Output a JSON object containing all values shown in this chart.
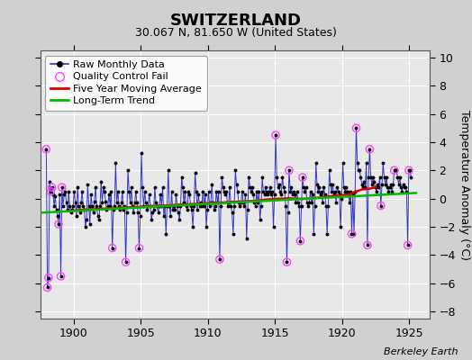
{
  "title": "SWITZERLAND",
  "subtitle": "30.067 N, 81.650 W (United States)",
  "ylabel": "Temperature Anomaly (°C)",
  "watermark": "Berkeley Earth",
  "xlim": [
    1897.5,
    1926.5
  ],
  "ylim": [
    -8.5,
    10.5
  ],
  "yticks": [
    -8,
    -6,
    -4,
    -2,
    0,
    2,
    4,
    6,
    8,
    10
  ],
  "xticks": [
    1900,
    1905,
    1910,
    1915,
    1920,
    1925
  ],
  "fig_bg_color": "#d0d0d0",
  "plot_bg_color": "#e8e8e8",
  "title_bg_color": "#e8e8e8",
  "raw_color": "#3333cc",
  "dot_color": "#000000",
  "qc_color": "#ff44ff",
  "mavg_color": "#dd0000",
  "trend_color": "#00bb00",
  "raw_monthly": [
    [
      1897.958,
      3.5
    ],
    [
      1898.042,
      -6.3
    ],
    [
      1898.125,
      -5.6
    ],
    [
      1898.208,
      1.2
    ],
    [
      1898.292,
      0.5
    ],
    [
      1898.375,
      0.8
    ],
    [
      1898.458,
      0.3
    ],
    [
      1898.542,
      -0.5
    ],
    [
      1898.625,
      0.2
    ],
    [
      1898.708,
      -0.8
    ],
    [
      1898.792,
      -1.2
    ],
    [
      1898.875,
      -1.8
    ],
    [
      1898.958,
      0.3
    ],
    [
      1899.042,
      -5.5
    ],
    [
      1899.125,
      0.8
    ],
    [
      1899.208,
      -0.5
    ],
    [
      1899.292,
      0.3
    ],
    [
      1899.375,
      0.5
    ],
    [
      1899.458,
      -0.3
    ],
    [
      1899.542,
      -0.8
    ],
    [
      1899.625,
      0.5
    ],
    [
      1899.708,
      -0.5
    ],
    [
      1899.792,
      -1.0
    ],
    [
      1899.875,
      -0.8
    ],
    [
      1899.958,
      -0.5
    ],
    [
      1900.042,
      0.5
    ],
    [
      1900.125,
      -0.3
    ],
    [
      1900.208,
      -1.2
    ],
    [
      1900.292,
      0.8
    ],
    [
      1900.375,
      -0.5
    ],
    [
      1900.458,
      -1.0
    ],
    [
      1900.542,
      -0.3
    ],
    [
      1900.625,
      0.5
    ],
    [
      1900.708,
      -0.5
    ],
    [
      1900.792,
      -0.8
    ],
    [
      1900.875,
      -2.0
    ],
    [
      1900.958,
      -1.5
    ],
    [
      1901.042,
      1.0
    ],
    [
      1901.125,
      -0.5
    ],
    [
      1901.208,
      -1.8
    ],
    [
      1901.292,
      0.3
    ],
    [
      1901.375,
      -0.5
    ],
    [
      1901.458,
      -1.0
    ],
    [
      1901.542,
      -0.2
    ],
    [
      1901.625,
      0.8
    ],
    [
      1901.708,
      -0.5
    ],
    [
      1901.792,
      -1.2
    ],
    [
      1901.875,
      -1.5
    ],
    [
      1901.958,
      -0.5
    ],
    [
      1902.042,
      1.2
    ],
    [
      1902.125,
      -0.3
    ],
    [
      1902.208,
      0.8
    ],
    [
      1902.292,
      0.5
    ],
    [
      1902.375,
      -0.2
    ],
    [
      1902.458,
      -0.8
    ],
    [
      1902.542,
      -0.5
    ],
    [
      1902.625,
      0.3
    ],
    [
      1902.708,
      -0.5
    ],
    [
      1902.792,
      0.5
    ],
    [
      1902.875,
      -3.5
    ],
    [
      1902.958,
      -0.8
    ],
    [
      1903.042,
      -0.5
    ],
    [
      1903.125,
      2.5
    ],
    [
      1903.208,
      -0.3
    ],
    [
      1903.292,
      0.5
    ],
    [
      1903.375,
      -0.5
    ],
    [
      1903.458,
      -0.8
    ],
    [
      1903.542,
      -0.3
    ],
    [
      1903.625,
      0.5
    ],
    [
      1903.708,
      -0.8
    ],
    [
      1903.792,
      -0.5
    ],
    [
      1903.875,
      -4.5
    ],
    [
      1903.958,
      -1.0
    ],
    [
      1904.042,
      2.0
    ],
    [
      1904.125,
      0.5
    ],
    [
      1904.208,
      -0.3
    ],
    [
      1904.292,
      0.8
    ],
    [
      1904.375,
      -0.5
    ],
    [
      1904.458,
      -1.0
    ],
    [
      1904.542,
      -0.3
    ],
    [
      1904.625,
      0.5
    ],
    [
      1904.708,
      -0.3
    ],
    [
      1904.792,
      -1.0
    ],
    [
      1904.875,
      -3.5
    ],
    [
      1904.958,
      -1.2
    ],
    [
      1905.042,
      3.2
    ],
    [
      1905.125,
      0.8
    ],
    [
      1905.208,
      -0.5
    ],
    [
      1905.292,
      0.5
    ],
    [
      1905.375,
      -0.3
    ],
    [
      1905.458,
      -0.8
    ],
    [
      1905.542,
      -0.5
    ],
    [
      1905.625,
      0.3
    ],
    [
      1905.708,
      -0.5
    ],
    [
      1905.792,
      -1.5
    ],
    [
      1905.875,
      -1.0
    ],
    [
      1905.958,
      -0.8
    ],
    [
      1906.042,
      0.8
    ],
    [
      1906.125,
      -0.3
    ],
    [
      1906.208,
      -0.5
    ],
    [
      1906.292,
      -1.0
    ],
    [
      1906.375,
      -0.5
    ],
    [
      1906.458,
      0.3
    ],
    [
      1906.542,
      -0.5
    ],
    [
      1906.625,
      0.8
    ],
    [
      1906.708,
      -1.2
    ],
    [
      1906.792,
      -0.5
    ],
    [
      1906.875,
      -2.5
    ],
    [
      1906.958,
      -0.5
    ],
    [
      1907.042,
      2.0
    ],
    [
      1907.125,
      -0.5
    ],
    [
      1907.208,
      -1.2
    ],
    [
      1907.292,
      0.5
    ],
    [
      1907.375,
      -0.8
    ],
    [
      1907.458,
      -0.5
    ],
    [
      1907.542,
      -0.8
    ],
    [
      1907.625,
      0.3
    ],
    [
      1907.708,
      -0.5
    ],
    [
      1907.792,
      -1.0
    ],
    [
      1907.875,
      -1.5
    ],
    [
      1907.958,
      -0.5
    ],
    [
      1908.042,
      1.5
    ],
    [
      1908.125,
      0.8
    ],
    [
      1908.208,
      -0.3
    ],
    [
      1908.292,
      0.5
    ],
    [
      1908.375,
      -0.5
    ],
    [
      1908.458,
      -0.8
    ],
    [
      1908.542,
      0.5
    ],
    [
      1908.625,
      0.3
    ],
    [
      1908.708,
      -0.5
    ],
    [
      1908.792,
      -0.8
    ],
    [
      1908.875,
      -2.0
    ],
    [
      1908.958,
      -0.5
    ],
    [
      1909.042,
      1.8
    ],
    [
      1909.125,
      0.5
    ],
    [
      1909.208,
      -0.8
    ],
    [
      1909.292,
      0.3
    ],
    [
      1909.375,
      -0.5
    ],
    [
      1909.458,
      -0.3
    ],
    [
      1909.542,
      -0.5
    ],
    [
      1909.625,
      0.5
    ],
    [
      1909.708,
      -0.5
    ],
    [
      1909.792,
      0.3
    ],
    [
      1909.875,
      -2.0
    ],
    [
      1909.958,
      -0.8
    ],
    [
      1910.042,
      0.5
    ],
    [
      1910.125,
      -0.5
    ],
    [
      1910.208,
      -0.3
    ],
    [
      1910.292,
      1.0
    ],
    [
      1910.375,
      -0.3
    ],
    [
      1910.458,
      -0.8
    ],
    [
      1910.542,
      -0.5
    ],
    [
      1910.625,
      0.5
    ],
    [
      1910.708,
      -0.3
    ],
    [
      1910.792,
      0.5
    ],
    [
      1910.875,
      -4.3
    ],
    [
      1910.958,
      -0.5
    ],
    [
      1911.042,
      1.5
    ],
    [
      1911.125,
      0.8
    ],
    [
      1911.208,
      0.5
    ],
    [
      1911.292,
      0.3
    ],
    [
      1911.375,
      0.5
    ],
    [
      1911.458,
      -0.5
    ],
    [
      1911.542,
      -0.3
    ],
    [
      1911.625,
      0.8
    ],
    [
      1911.708,
      -0.5
    ],
    [
      1911.792,
      -1.0
    ],
    [
      1911.875,
      -2.5
    ],
    [
      1911.958,
      -0.5
    ],
    [
      1912.042,
      2.0
    ],
    [
      1912.125,
      1.0
    ],
    [
      1912.208,
      0.5
    ],
    [
      1912.292,
      -0.3
    ],
    [
      1912.375,
      -0.5
    ],
    [
      1912.458,
      -0.3
    ],
    [
      1912.542,
      0.5
    ],
    [
      1912.625,
      -0.3
    ],
    [
      1912.708,
      -0.5
    ],
    [
      1912.792,
      0.3
    ],
    [
      1912.875,
      -2.8
    ],
    [
      1912.958,
      -0.8
    ],
    [
      1913.042,
      1.5
    ],
    [
      1913.125,
      0.8
    ],
    [
      1913.208,
      0.5
    ],
    [
      1913.292,
      0.8
    ],
    [
      1913.375,
      0.3
    ],
    [
      1913.458,
      -0.3
    ],
    [
      1913.542,
      -0.5
    ],
    [
      1913.625,
      0.5
    ],
    [
      1913.708,
      -0.3
    ],
    [
      1913.792,
      0.5
    ],
    [
      1913.875,
      -1.5
    ],
    [
      1913.958,
      -0.5
    ],
    [
      1914.042,
      1.5
    ],
    [
      1914.125,
      0.5
    ],
    [
      1914.208,
      0.3
    ],
    [
      1914.292,
      0.8
    ],
    [
      1914.375,
      0.5
    ],
    [
      1914.458,
      0.3
    ],
    [
      1914.542,
      0.5
    ],
    [
      1914.625,
      0.8
    ],
    [
      1914.708,
      0.3
    ],
    [
      1914.792,
      0.5
    ],
    [
      1914.875,
      -2.0
    ],
    [
      1914.958,
      0.3
    ],
    [
      1915.042,
      4.5
    ],
    [
      1915.125,
      1.5
    ],
    [
      1915.208,
      0.8
    ],
    [
      1915.292,
      1.0
    ],
    [
      1915.375,
      0.5
    ],
    [
      1915.458,
      0.3
    ],
    [
      1915.542,
      1.5
    ],
    [
      1915.625,
      0.8
    ],
    [
      1915.708,
      0.5
    ],
    [
      1915.792,
      -0.5
    ],
    [
      1915.875,
      -4.5
    ],
    [
      1915.958,
      -1.0
    ],
    [
      1916.042,
      2.0
    ],
    [
      1916.125,
      0.5
    ],
    [
      1916.208,
      0.8
    ],
    [
      1916.292,
      0.3
    ],
    [
      1916.375,
      0.5
    ],
    [
      1916.458,
      0.3
    ],
    [
      1916.542,
      -0.3
    ],
    [
      1916.625,
      0.5
    ],
    [
      1916.708,
      -0.3
    ],
    [
      1916.792,
      -0.5
    ],
    [
      1916.875,
      -3.0
    ],
    [
      1916.958,
      -0.5
    ],
    [
      1917.042,
      1.5
    ],
    [
      1917.125,
      0.8
    ],
    [
      1917.208,
      0.5
    ],
    [
      1917.292,
      0.8
    ],
    [
      1917.375,
      -0.3
    ],
    [
      1917.458,
      -0.5
    ],
    [
      1917.542,
      -0.3
    ],
    [
      1917.625,
      0.5
    ],
    [
      1917.708,
      -0.3
    ],
    [
      1917.792,
      0.3
    ],
    [
      1917.875,
      -2.5
    ],
    [
      1917.958,
      -0.5
    ],
    [
      1918.042,
      2.5
    ],
    [
      1918.125,
      1.0
    ],
    [
      1918.208,
      0.5
    ],
    [
      1918.292,
      0.8
    ],
    [
      1918.375,
      0.3
    ],
    [
      1918.458,
      0.5
    ],
    [
      1918.542,
      -0.3
    ],
    [
      1918.625,
      0.8
    ],
    [
      1918.708,
      0.3
    ],
    [
      1918.792,
      -0.5
    ],
    [
      1918.875,
      -2.5
    ],
    [
      1918.958,
      -0.5
    ],
    [
      1919.042,
      2.0
    ],
    [
      1919.125,
      1.0
    ],
    [
      1919.208,
      0.5
    ],
    [
      1919.292,
      1.0
    ],
    [
      1919.375,
      0.3
    ],
    [
      1919.458,
      0.5
    ],
    [
      1919.542,
      -0.3
    ],
    [
      1919.625,
      0.8
    ],
    [
      1919.708,
      0.5
    ],
    [
      1919.792,
      0.3
    ],
    [
      1919.875,
      -2.0
    ],
    [
      1919.958,
      0.0
    ],
    [
      1920.042,
      2.5
    ],
    [
      1920.125,
      0.8
    ],
    [
      1920.208,
      0.5
    ],
    [
      1920.292,
      0.8
    ],
    [
      1920.375,
      0.5
    ],
    [
      1920.458,
      0.3
    ],
    [
      1920.542,
      -0.3
    ],
    [
      1920.625,
      0.5
    ],
    [
      1920.708,
      -2.5
    ],
    [
      1920.792,
      0.3
    ],
    [
      1920.875,
      -2.5
    ],
    [
      1920.958,
      0.5
    ],
    [
      1921.042,
      5.0
    ],
    [
      1921.125,
      2.5
    ],
    [
      1921.208,
      2.0
    ],
    [
      1921.292,
      2.0
    ],
    [
      1921.375,
      1.5
    ],
    [
      1921.458,
      1.0
    ],
    [
      1921.542,
      0.8
    ],
    [
      1921.625,
      1.2
    ],
    [
      1921.708,
      0.8
    ],
    [
      1921.792,
      2.5
    ],
    [
      1921.875,
      -3.3
    ],
    [
      1921.958,
      1.5
    ],
    [
      1922.042,
      3.5
    ],
    [
      1922.125,
      1.5
    ],
    [
      1922.208,
      1.0
    ],
    [
      1922.292,
      1.5
    ],
    [
      1922.375,
      1.2
    ],
    [
      1922.458,
      0.8
    ],
    [
      1922.542,
      0.5
    ],
    [
      1922.625,
      1.0
    ],
    [
      1922.708,
      0.8
    ],
    [
      1922.792,
      1.5
    ],
    [
      1922.875,
      -0.5
    ],
    [
      1922.958,
      1.0
    ],
    [
      1923.042,
      2.5
    ],
    [
      1923.125,
      1.5
    ],
    [
      1923.208,
      1.0
    ],
    [
      1923.292,
      1.5
    ],
    [
      1923.375,
      0.8
    ],
    [
      1923.458,
      0.5
    ],
    [
      1923.542,
      0.8
    ],
    [
      1923.625,
      1.0
    ],
    [
      1923.708,
      0.5
    ],
    [
      1923.792,
      1.0
    ],
    [
      1923.875,
      2.0
    ],
    [
      1923.958,
      2.0
    ],
    [
      1924.042,
      2.0
    ],
    [
      1924.125,
      1.5
    ],
    [
      1924.208,
      1.0
    ],
    [
      1924.292,
      1.5
    ],
    [
      1924.375,
      0.8
    ],
    [
      1924.458,
      0.5
    ],
    [
      1924.542,
      1.0
    ],
    [
      1924.625,
      0.8
    ],
    [
      1924.708,
      0.8
    ],
    [
      1924.792,
      0.5
    ],
    [
      1924.875,
      -3.3
    ],
    [
      1924.958,
      2.0
    ],
    [
      1925.042,
      2.0
    ],
    [
      1925.125,
      1.5
    ]
  ],
  "qc_fail_points": [
    [
      1897.958,
      3.5
    ],
    [
      1898.042,
      -6.3
    ],
    [
      1898.125,
      -5.6
    ],
    [
      1898.875,
      -1.8
    ],
    [
      1899.042,
      -5.5
    ],
    [
      1898.292,
      0.5
    ],
    [
      1898.375,
      0.8
    ],
    [
      1902.875,
      -3.5
    ],
    [
      1903.875,
      -4.5
    ],
    [
      1904.875,
      -3.5
    ],
    [
      1910.875,
      -4.3
    ],
    [
      1915.875,
      -4.5
    ],
    [
      1916.875,
      -3.0
    ],
    [
      1921.875,
      -3.3
    ],
    [
      1922.042,
      3.5
    ],
    [
      1922.875,
      -0.5
    ],
    [
      1923.875,
      2.0
    ],
    [
      1924.875,
      -3.3
    ],
    [
      1924.958,
      2.0
    ],
    [
      1920.708,
      -2.5
    ],
    [
      1915.042,
      4.5
    ],
    [
      1921.042,
      5.0
    ],
    [
      1916.042,
      2.0
    ],
    [
      1917.042,
      1.5
    ],
    [
      1899.125,
      0.8
    ]
  ],
  "five_year_mavg": [
    [
      1899.5,
      -0.9
    ],
    [
      1900.0,
      -0.85
    ],
    [
      1900.5,
      -0.8
    ],
    [
      1901.0,
      -0.78
    ],
    [
      1901.5,
      -0.75
    ],
    [
      1902.0,
      -0.72
    ],
    [
      1902.5,
      -0.7
    ],
    [
      1903.0,
      -0.68
    ],
    [
      1903.5,
      -0.65
    ],
    [
      1904.0,
      -0.62
    ],
    [
      1904.5,
      -0.6
    ],
    [
      1905.0,
      -0.58
    ],
    [
      1905.5,
      -0.55
    ],
    [
      1906.0,
      -0.52
    ],
    [
      1906.5,
      -0.5
    ],
    [
      1907.0,
      -0.48
    ],
    [
      1907.5,
      -0.45
    ],
    [
      1908.0,
      -0.42
    ],
    [
      1908.5,
      -0.4
    ],
    [
      1909.0,
      -0.38
    ],
    [
      1909.5,
      -0.35
    ],
    [
      1910.0,
      -0.32
    ],
    [
      1910.5,
      -0.3
    ],
    [
      1911.0,
      -0.28
    ],
    [
      1911.5,
      -0.25
    ],
    [
      1912.0,
      -0.22
    ],
    [
      1912.5,
      -0.2
    ],
    [
      1913.0,
      -0.18
    ],
    [
      1913.5,
      -0.15
    ],
    [
      1914.0,
      -0.1
    ],
    [
      1914.5,
      -0.05
    ],
    [
      1915.0,
      -0.02
    ],
    [
      1915.5,
      0.0
    ],
    [
      1916.0,
      0.02
    ],
    [
      1916.5,
      0.0
    ],
    [
      1917.0,
      -0.02
    ],
    [
      1917.5,
      0.0
    ],
    [
      1918.0,
      0.05
    ],
    [
      1918.5,
      0.1
    ],
    [
      1919.0,
      0.15
    ],
    [
      1919.5,
      0.2
    ],
    [
      1920.0,
      0.25
    ],
    [
      1920.5,
      0.3
    ],
    [
      1921.0,
      0.5
    ],
    [
      1921.5,
      0.65
    ],
    [
      1922.0,
      0.7
    ],
    [
      1922.5,
      0.8
    ]
  ],
  "trend_line": [
    [
      1897.5,
      -1.0
    ],
    [
      1925.5,
      0.4
    ]
  ],
  "title_fontsize": 13,
  "subtitle_fontsize": 9,
  "tick_fontsize": 9,
  "ylabel_fontsize": 9,
  "legend_fontsize": 8,
  "watermark_fontsize": 8
}
